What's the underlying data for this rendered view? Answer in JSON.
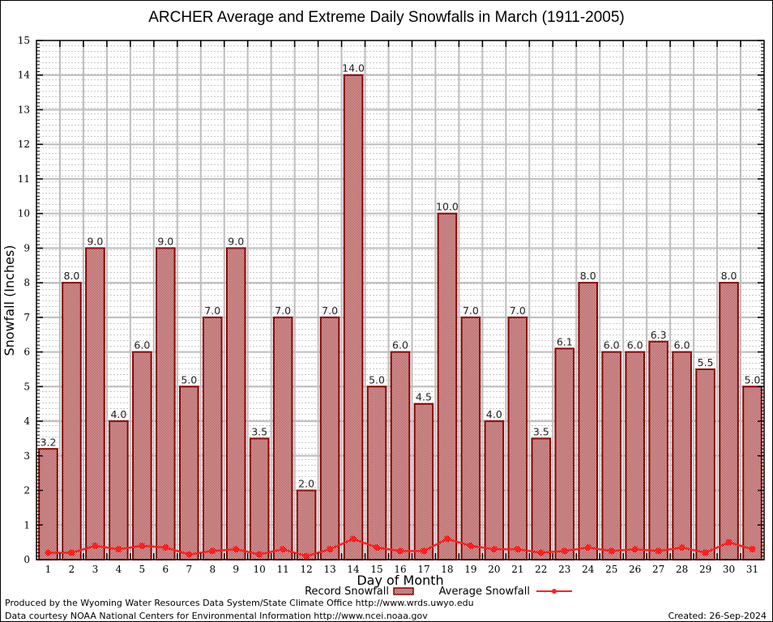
{
  "chart_data": {
    "type": "bar",
    "title": "ARCHER Average and Extreme Daily Snowfalls in March (1911-2005)",
    "xlabel": "Day of Month",
    "ylabel": "Snowfall (Inches)",
    "ylim": [
      0,
      15
    ],
    "yticks": [
      0,
      1,
      2,
      3,
      4,
      5,
      6,
      7,
      8,
      9,
      10,
      11,
      12,
      13,
      14,
      15
    ],
    "grid": true,
    "categories": [
      "1",
      "2",
      "3",
      "4",
      "5",
      "6",
      "7",
      "8",
      "9",
      "10",
      "11",
      "12",
      "13",
      "14",
      "15",
      "16",
      "17",
      "18",
      "19",
      "20",
      "21",
      "22",
      "23",
      "24",
      "25",
      "26",
      "27",
      "28",
      "29",
      "30",
      "31"
    ],
    "series": [
      {
        "name": "Record Snowfall",
        "type": "bar",
        "color": "#8b0000",
        "values": [
          3.2,
          8.0,
          9.0,
          4.0,
          6.0,
          9.0,
          5.0,
          7.0,
          9.0,
          3.5,
          7.0,
          2.0,
          7.0,
          14.0,
          5.0,
          6.0,
          4.5,
          10.0,
          7.0,
          4.0,
          7.0,
          3.5,
          6.1,
          8.0,
          6.0,
          6.0,
          6.3,
          6.0,
          5.5,
          8.0,
          5.0
        ],
        "labels": [
          "3.2",
          "8.0",
          "9.0",
          "4.0",
          "6.0",
          "9.0",
          "5.0",
          "7.0",
          "9.0",
          "3.5",
          "7.0",
          "2.0",
          "7.0",
          "14.0",
          "5.0",
          "6.0",
          "4.5",
          "10.0",
          "7.0",
          "4.0",
          "7.0",
          "3.5",
          "6.1",
          "8.0",
          "6.0",
          "6.0",
          "6.3",
          "6.0",
          "5.5",
          "8.0",
          "5.0"
        ]
      },
      {
        "name": "Average Snowfall",
        "type": "line",
        "color": "#ff2020",
        "values": [
          0.2,
          0.2,
          0.4,
          0.3,
          0.4,
          0.35,
          0.15,
          0.25,
          0.3,
          0.15,
          0.3,
          0.1,
          0.3,
          0.6,
          0.35,
          0.25,
          0.25,
          0.6,
          0.4,
          0.3,
          0.3,
          0.2,
          0.25,
          0.35,
          0.25,
          0.3,
          0.25,
          0.35,
          0.2,
          0.5,
          0.3
        ]
      }
    ],
    "legend": "bottom-center"
  },
  "footer": {
    "produced_by": "Produced by the Wyoming Water Resources Data System/State Climate Office http://www.wrds.uwyo.edu",
    "courtesy": "Data courtesy NOAA National Centers for Environmental Information http://www.ncei.noaa.gov",
    "created": "Created: 26-Sep-2024"
  }
}
